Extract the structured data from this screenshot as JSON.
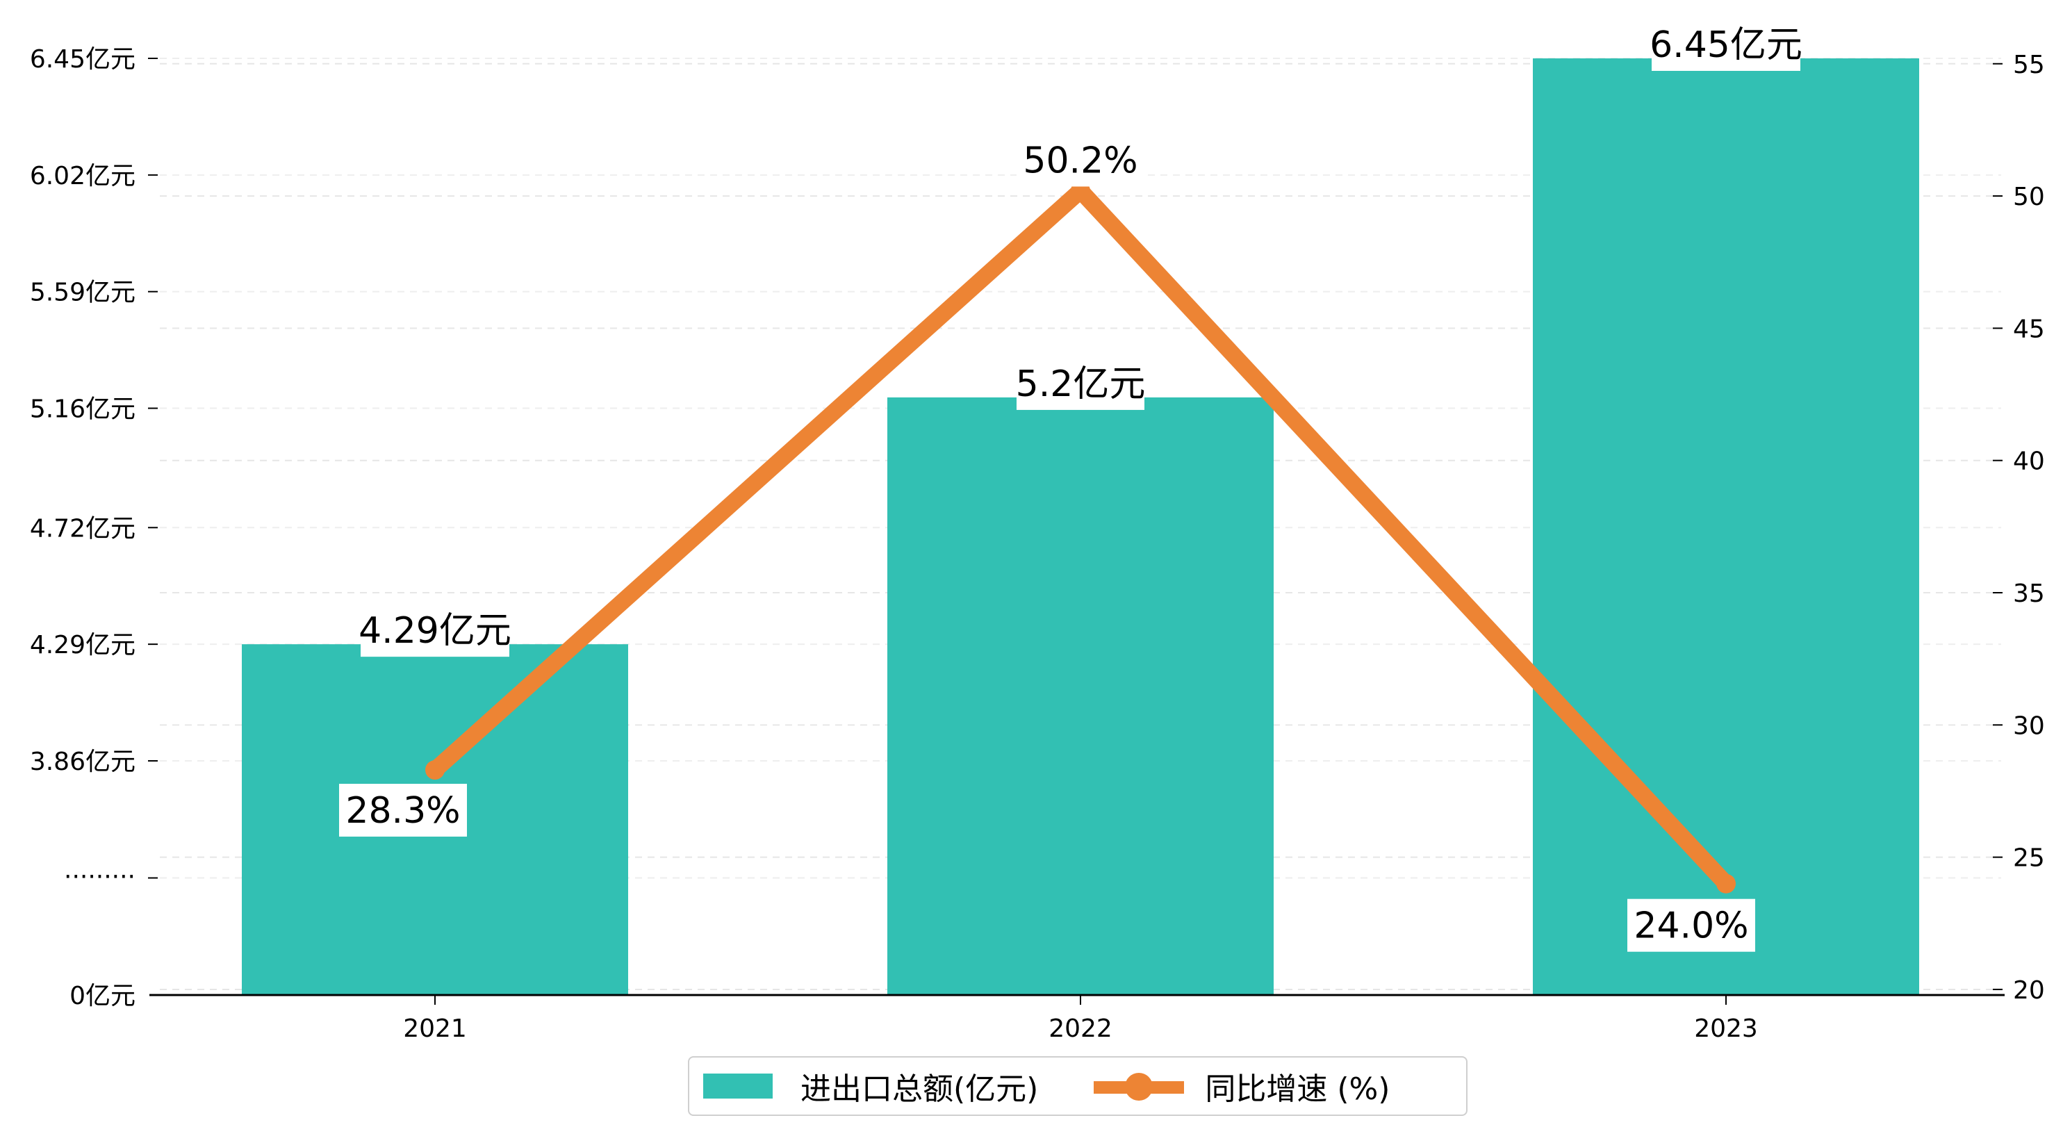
{
  "chart_data": {
    "type": "bar+line",
    "categories": [
      "2021",
      "2022",
      "2023"
    ],
    "series": [
      {
        "name": "进出口总额(亿元)",
        "type": "bar",
        "axis": "left",
        "values": [
          4.29,
          5.2,
          6.45
        ],
        "labels": [
          "4.29亿元",
          "5.2亿元",
          "6.45亿元"
        ],
        "color": "#32c0b3"
      },
      {
        "name": "同比增速 (%)",
        "type": "line",
        "axis": "right",
        "values": [
          28.3,
          50.2,
          24.0
        ],
        "labels": [
          "28.3%",
          "50.2%",
          "24.0%"
        ],
        "color": "#ed8434"
      }
    ],
    "left_axis": {
      "type": "broken",
      "break_label": "·········",
      "ticks": [
        {
          "label": "0亿元",
          "value": 0
        },
        {
          "label": "3.86亿元",
          "value": 3.86
        },
        {
          "label": "4.29亿元",
          "value": 4.29
        },
        {
          "label": "4.72亿元",
          "value": 4.72
        },
        {
          "label": "5.16亿元",
          "value": 5.16
        },
        {
          "label": "5.59亿元",
          "value": 5.59
        },
        {
          "label": "6.02亿元",
          "value": 6.02
        },
        {
          "label": "6.45亿元",
          "value": 6.45
        }
      ]
    },
    "right_axis": {
      "ylim": [
        19,
        56
      ],
      "ticks": [
        20,
        25,
        30,
        35,
        40,
        45,
        50,
        55
      ]
    },
    "grid": "horizontal-dashed",
    "legend": {
      "position": "bottom-center"
    }
  }
}
